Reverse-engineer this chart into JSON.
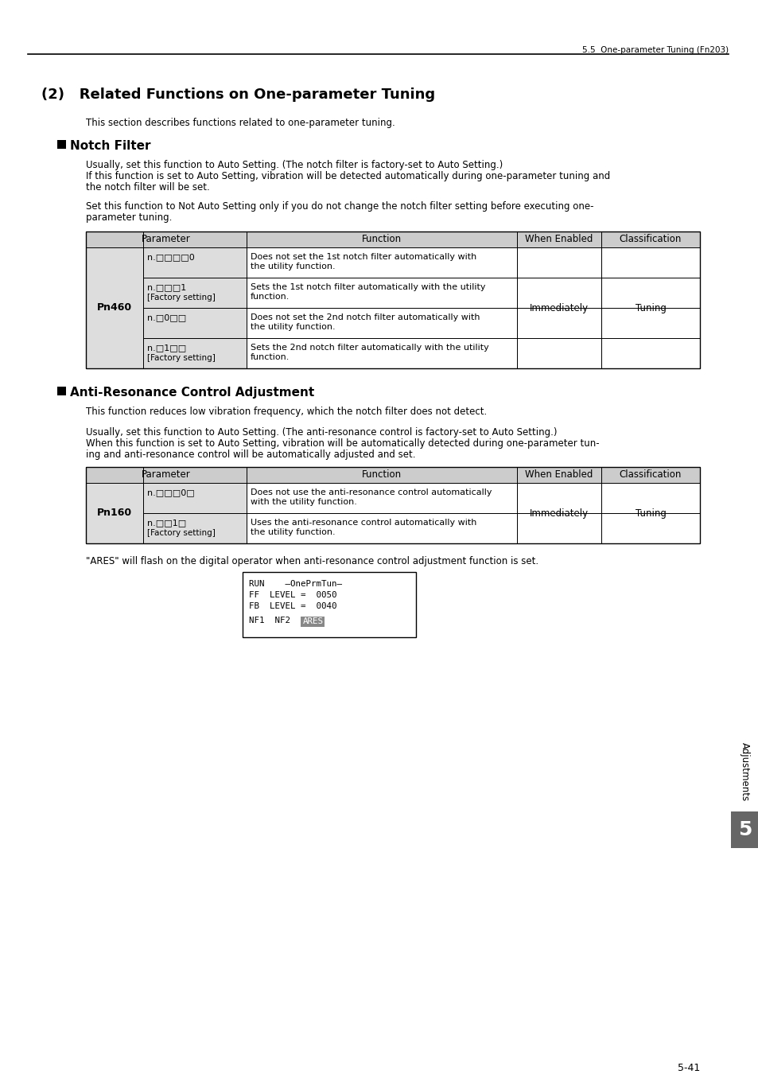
{
  "page_header": "5.5  One-parameter Tuning (Fn203)",
  "page_number": "5-41",
  "chapter_label": "Adjustments",
  "chapter_number": "5",
  "main_title": "(2)   Related Functions on One-parameter Tuning",
  "intro_text": "This section describes functions related to one-parameter tuning.",
  "section1_title": "Notch Filter",
  "section1_para1a": "Usually, set this function to Auto Setting. (The notch filter is factory-set to Auto Setting.)",
  "section1_para1b": "If this function is set to Auto Setting, vibration will be detected automatically during one-parameter tuning and",
  "section1_para1c": "the notch filter will be set.",
  "section1_para2a": "Set this function to Not Auto Setting only if you do not change the notch filter setting before executing one-",
  "section1_para2b": "parameter tuning.",
  "table1_param_label": "Pn460",
  "table1_rows": [
    [
      "n.□□□□0",
      "",
      "Does not set the 1st notch filter automatically with",
      "the utility function.",
      "",
      ""
    ],
    [
      "n.□□□1",
      "[Factory setting]",
      "Sets the 1st notch filter automatically with the utility",
      "function.",
      "Immediately",
      "Tuning"
    ],
    [
      "n.□0□□",
      "",
      "Does not set the 2nd notch filter automatically with",
      "the utility function.",
      "",
      ""
    ],
    [
      "n.□1□□",
      "[Factory setting]",
      "Sets the 2nd notch filter automatically with the utility",
      "function.",
      "",
      ""
    ]
  ],
  "section2_title": "Anti-Resonance Control Adjustment",
  "section2_para1": "This function reduces low vibration frequency, which the notch filter does not detect.",
  "section2_para2a": "Usually, set this function to Auto Setting. (The anti-resonance control is factory-set to Auto Setting.)",
  "section2_para2b": "When this function is set to Auto Setting, vibration will be automatically detected during one-parameter tun-",
  "section2_para2c": "ing and anti-resonance control will be automatically adjusted and set.",
  "table2_param_label": "Pn160",
  "table2_rows": [
    [
      "n.□□□0□",
      "",
      "Does not use the anti-resonance control automatically",
      "with the utility function.",
      "Immediately",
      "Tuning"
    ],
    [
      "n.□□1□",
      "[Factory setting]",
      "Uses the anti-resonance control automatically with",
      "the utility function.",
      "",
      ""
    ]
  ],
  "ares_note": "\"ARES\" will flash on the digital operator when anti-resonance control adjustment function is set.",
  "display_line1": "RUN    —OnePrmTun—",
  "display_line2": "FF  LEVEL =  0050",
  "display_line3": "FB  LEVEL =  0040",
  "display_line4": "NF1  NF2    ARES",
  "bg_color": "#ffffff",
  "table_header_bg": "#cccccc",
  "table_border_color": "#000000",
  "param_col_bg": "#dddddd",
  "ares_bg": "#888888",
  "ares_fg": "#ffffff",
  "sidebar_bg": "#666666",
  "sidebar_fg": "#ffffff"
}
